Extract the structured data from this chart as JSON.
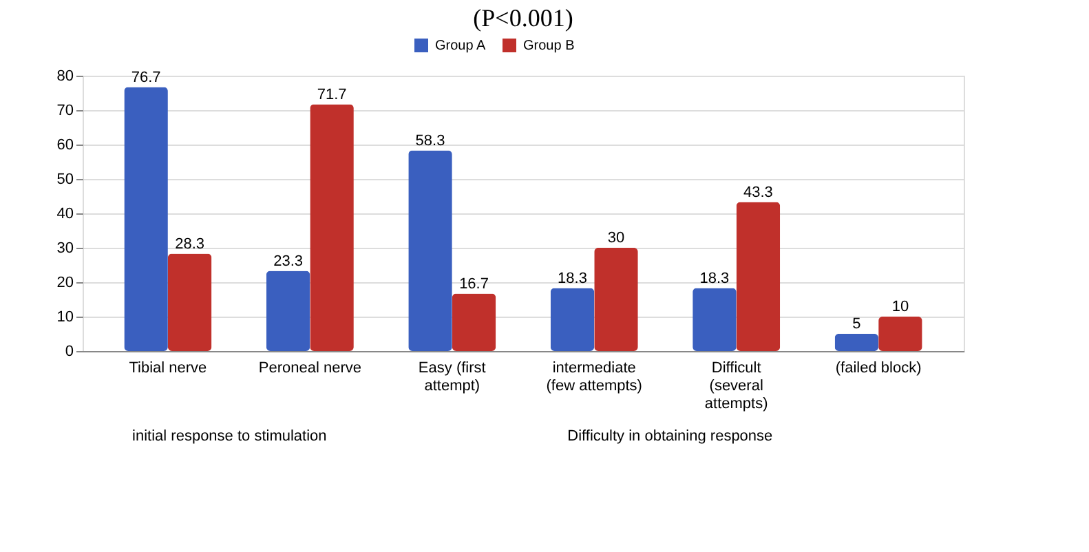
{
  "chart_data": {
    "type": "bar",
    "title": "(P<0.001)",
    "categories": [
      "Tibial nerve",
      "Peroneal nerve",
      "Easy (first attempt)",
      "intermediate (few attempts)",
      "Difficult (several attempts)",
      "(failed block)"
    ],
    "series": [
      {
        "name": "Group A",
        "color": "#3a5fbf",
        "values": [
          76.7,
          23.3,
          58.3,
          18.3,
          18.3,
          5
        ]
      },
      {
        "name": "Group B",
        "color": "#c0302b",
        "values": [
          28.3,
          71.7,
          16.7,
          30,
          43.3,
          10
        ]
      }
    ],
    "annotations": [
      "initial response to stimulation",
      "Difficulty in obtaining response"
    ],
    "ylim": [
      0,
      80
    ],
    "yticks": [
      0,
      10,
      20,
      30,
      40,
      50,
      60,
      70,
      80
    ],
    "grid": "y",
    "legend": "top",
    "data_labels": true
  }
}
